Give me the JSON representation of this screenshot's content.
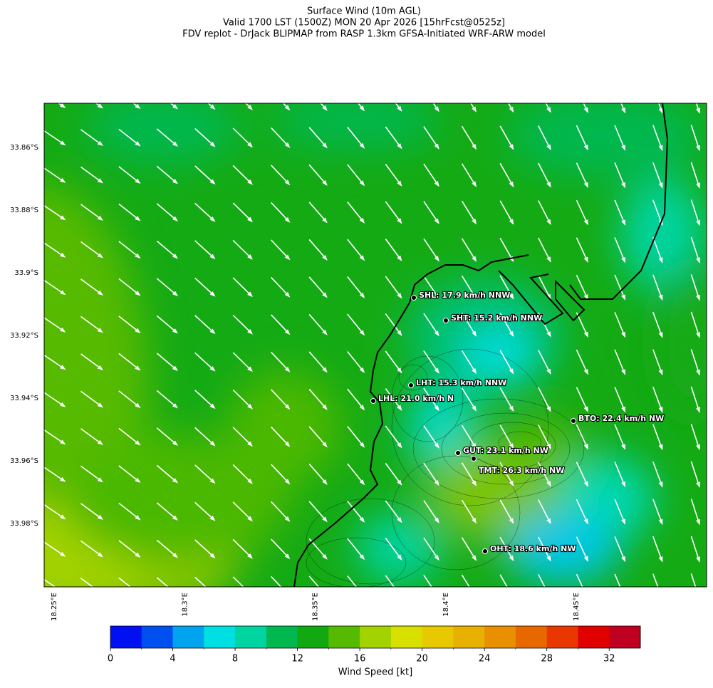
{
  "title": [
    "Surface Wind (10m AGL)",
    "Valid 1700 LST (1500Z) MON 20 Apr 2026 [15hrFcst@0525z]",
    "FDV replot - DrJack BLIPMAP from RASP 1.3km GFSA-Initiated WRF-ARW model"
  ],
  "map": {
    "lat_labels": [
      "33.86°S",
      "33.88°S",
      "33.9°S",
      "33.92°S",
      "33.94°S",
      "33.96°S",
      "33.98°S"
    ],
    "lon_labels": [
      "18.25°E",
      "18.3°E",
      "18.35°E",
      "18.4°E",
      "18.45°E"
    ],
    "stations": [
      "SHL: 17.9 km/h NNW",
      "SHT: 15.2 km/h NNW",
      "LHT: 15.3 km/h NNW",
      "LHL: 21.0 km/h N",
      "BTO: 22.4 km/h NW",
      "GUT: 23.1 km/h NW",
      "TMT: 26.3 km/h NW",
      "OHT: 18.6 km/h NW"
    ]
  },
  "colorbar": {
    "label": "Wind Speed [kt]",
    "lim": [
      0,
      34
    ],
    "ticks": [
      0,
      4,
      8,
      12,
      16,
      20,
      24,
      28,
      32
    ],
    "colors": [
      "#0010f0",
      "#0050f0",
      "#00a4ee",
      "#00e0e2",
      "#00d4a0",
      "#00b850",
      "#12a812",
      "#56ba00",
      "#a2d200",
      "#d8e000",
      "#e8c800",
      "#e8b000",
      "#e89000",
      "#e86800",
      "#e83800",
      "#e00000",
      "#c00020"
    ]
  }
}
